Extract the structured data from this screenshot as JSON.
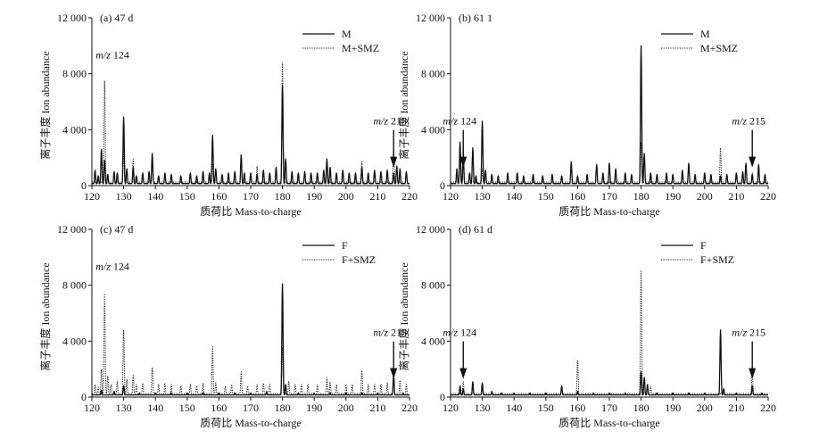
{
  "chart_data": [
    {
      "type": "line",
      "panel_label": "(a) 47 d",
      "xlabel": "质荷比 Mass-to-charge",
      "ylabel": "离子丰度 Ion abundance",
      "xlim": [
        120,
        220
      ],
      "ylim": [
        0,
        12000
      ],
      "xticks": [
        120,
        130,
        140,
        150,
        160,
        170,
        180,
        190,
        200,
        210,
        220
      ],
      "yticks": [
        0,
        4000,
        8000,
        12000
      ],
      "ytick_labels": [
        "0",
        "4 000",
        "8 000",
        "12 000"
      ],
      "legend_position": "top-right",
      "series": [
        {
          "name": "M",
          "style": "solid",
          "peaks": [
            [
              121,
              1100
            ],
            [
              122,
              700
            ],
            [
              123,
              2600
            ],
            [
              124,
              1800
            ],
            [
              125,
              800
            ],
            [
              127,
              1000
            ],
            [
              128,
              900
            ],
            [
              130,
              4900
            ],
            [
              131,
              1200
            ],
            [
              133,
              1300
            ],
            [
              134,
              700
            ],
            [
              136,
              900
            ],
            [
              138,
              1000
            ],
            [
              139,
              2300
            ],
            [
              141,
              700
            ],
            [
              143,
              900
            ],
            [
              145,
              800
            ],
            [
              148,
              700
            ],
            [
              151,
              900
            ],
            [
              153,
              700
            ],
            [
              155,
              1000
            ],
            [
              157,
              900
            ],
            [
              158,
              3600
            ],
            [
              159,
              1200
            ],
            [
              161,
              800
            ],
            [
              163,
              900
            ],
            [
              165,
              1000
            ],
            [
              167,
              2200
            ],
            [
              168,
              900
            ],
            [
              170,
              900
            ],
            [
              172,
              800
            ],
            [
              174,
              1100
            ],
            [
              176,
              900
            ],
            [
              178,
              1300
            ],
            [
              180,
              7200
            ],
            [
              181,
              1900
            ],
            [
              183,
              1000
            ],
            [
              185,
              900
            ],
            [
              187,
              1000
            ],
            [
              189,
              900
            ],
            [
              191,
              900
            ],
            [
              193,
              1100
            ],
            [
              194,
              1900
            ],
            [
              195,
              1300
            ],
            [
              197,
              900
            ],
            [
              199,
              1100
            ],
            [
              201,
              900
            ],
            [
              203,
              900
            ],
            [
              205,
              1300
            ],
            [
              207,
              900
            ],
            [
              209,
              1100
            ],
            [
              211,
              1000
            ],
            [
              213,
              1100
            ],
            [
              215,
              900
            ],
            [
              216,
              1400
            ],
            [
              217,
              1200
            ],
            [
              219,
              1000
            ]
          ]
        },
        {
          "name": "M+SMZ",
          "style": "dotted",
          "peaks": [
            [
              124,
              7500
            ],
            [
              130,
              2400
            ],
            [
              133,
              1900
            ],
            [
              139,
              1600
            ],
            [
              158,
              1600
            ],
            [
              172,
              1400
            ],
            [
              180,
              8800
            ],
            [
              194,
              1800
            ],
            [
              205,
              1700
            ],
            [
              215,
              2600
            ]
          ]
        }
      ],
      "annotations": [
        {
          "text": "m/z 124",
          "x": 124,
          "arrow": false
        },
        {
          "text": "m/z 215",
          "x": 215,
          "arrow": true
        }
      ]
    },
    {
      "type": "line",
      "panel_label": "(b) 61 1",
      "xlabel": "质荷比 Mass-to-charge",
      "ylabel": "离子丰度 Ion abundance",
      "xlim": [
        120,
        220
      ],
      "ylim": [
        0,
        12000
      ],
      "xticks": [
        120,
        130,
        140,
        150,
        160,
        170,
        180,
        190,
        200,
        210,
        220
      ],
      "yticks": [
        0,
        4000,
        8000,
        12000
      ],
      "ytick_labels": [
        "0",
        "4 000",
        "8 000",
        "12 000"
      ],
      "legend_position": "top-right",
      "series": [
        {
          "name": "M",
          "style": "solid",
          "peaks": [
            [
              122,
              1200
            ],
            [
              123,
              3100
            ],
            [
              124,
              2000
            ],
            [
              126,
              900
            ],
            [
              127,
              2700
            ],
            [
              128,
              700
            ],
            [
              130,
              4600
            ],
            [
              131,
              1100
            ],
            [
              133,
              800
            ],
            [
              135,
              700
            ],
            [
              138,
              900
            ],
            [
              141,
              900
            ],
            [
              143,
              700
            ],
            [
              146,
              800
            ],
            [
              149,
              700
            ],
            [
              152,
              800
            ],
            [
              155,
              700
            ],
            [
              158,
              1700
            ],
            [
              160,
              700
            ],
            [
              163,
              800
            ],
            [
              166,
              1500
            ],
            [
              168,
              900
            ],
            [
              170,
              1600
            ],
            [
              172,
              1200
            ],
            [
              175,
              900
            ],
            [
              177,
              800
            ],
            [
              180,
              10000
            ],
            [
              181,
              2300
            ],
            [
              183,
              900
            ],
            [
              185,
              800
            ],
            [
              188,
              900
            ],
            [
              190,
              800
            ],
            [
              193,
              1100
            ],
            [
              195,
              1600
            ],
            [
              197,
              800
            ],
            [
              200,
              900
            ],
            [
              202,
              800
            ],
            [
              205,
              700
            ],
            [
              207,
              800
            ],
            [
              210,
              900
            ],
            [
              212,
              1000
            ],
            [
              213,
              1600
            ],
            [
              215,
              800
            ],
            [
              217,
              1500
            ],
            [
              219,
              800
            ]
          ]
        },
        {
          "name": "M+SMZ",
          "style": "dotted",
          "peaks": [
            [
              123,
              1800
            ],
            [
              124,
              2800
            ],
            [
              130,
              1200
            ],
            [
              180,
              3100
            ],
            [
              205,
              2700
            ],
            [
              215,
              900
            ]
          ]
        }
      ],
      "annotations": [
        {
          "text": "m/z 124",
          "x": 124,
          "arrow": true
        },
        {
          "text": "m/z 215",
          "x": 215,
          "arrow": true
        }
      ]
    },
    {
      "type": "line",
      "panel_label": "(c) 47 d",
      "xlabel": "质荷比 Mass-to-charge",
      "ylabel": "离子丰度 Ion abundance",
      "xlim": [
        120,
        220
      ],
      "ylim": [
        0,
        12000
      ],
      "xticks": [
        120,
        130,
        140,
        150,
        160,
        170,
        180,
        190,
        200,
        210,
        220
      ],
      "yticks": [
        0,
        4000,
        8000,
        12000
      ],
      "ytick_labels": [
        "0",
        "4 000",
        "8 000",
        "12 000"
      ],
      "legend_position": "top-right",
      "series": [
        {
          "name": "F",
          "style": "solid",
          "peaks": [
            [
              123,
              500
            ],
            [
              127,
              400
            ],
            [
              130,
              800
            ],
            [
              135,
              300
            ],
            [
              140,
              300
            ],
            [
              145,
              300
            ],
            [
              150,
              300
            ],
            [
              155,
              300
            ],
            [
              160,
              300
            ],
            [
              165,
              300
            ],
            [
              170,
              300
            ],
            [
              175,
              400
            ],
            [
              180,
              8100
            ],
            [
              181,
              900
            ],
            [
              185,
              300
            ],
            [
              190,
              300
            ],
            [
              195,
              300
            ],
            [
              200,
              300
            ],
            [
              205,
              300
            ],
            [
              210,
              300
            ],
            [
              215,
              1500
            ],
            [
              218,
              300
            ]
          ]
        },
        {
          "name": "F+SMZ",
          "style": "dotted",
          "peaks": [
            [
              121,
              900
            ],
            [
              122,
              700
            ],
            [
              123,
              2000
            ],
            [
              124,
              7400
            ],
            [
              125,
              1500
            ],
            [
              126,
              900
            ],
            [
              128,
              1100
            ],
            [
              130,
              4800
            ],
            [
              131,
              1300
            ],
            [
              133,
              1600
            ],
            [
              134,
              900
            ],
            [
              136,
              1000
            ],
            [
              139,
              2100
            ],
            [
              141,
              900
            ],
            [
              143,
              1000
            ],
            [
              145,
              900
            ],
            [
              148,
              800
            ],
            [
              151,
              900
            ],
            [
              153,
              800
            ],
            [
              155,
              1000
            ],
            [
              158,
              3600
            ],
            [
              159,
              1000
            ],
            [
              162,
              800
            ],
            [
              164,
              900
            ],
            [
              167,
              1800
            ],
            [
              169,
              800
            ],
            [
              172,
              900
            ],
            [
              174,
              1000
            ],
            [
              176,
              900
            ],
            [
              180,
              3500
            ],
            [
              182,
              1100
            ],
            [
              184,
              900
            ],
            [
              186,
              900
            ],
            [
              188,
              900
            ],
            [
              191,
              900
            ],
            [
              194,
              1400
            ],
            [
              195,
              1100
            ],
            [
              197,
              900
            ],
            [
              200,
              900
            ],
            [
              202,
              900
            ],
            [
              205,
              1900
            ],
            [
              207,
              900
            ],
            [
              209,
              900
            ],
            [
              211,
              900
            ],
            [
              213,
              1000
            ],
            [
              215,
              1700
            ],
            [
              217,
              1200
            ],
            [
              219,
              900
            ]
          ]
        }
      ],
      "annotations": [
        {
          "text": "m/z 124",
          "x": 124,
          "arrow": false
        },
        {
          "text": "m/z 215",
          "x": 215,
          "arrow": true
        }
      ]
    },
    {
      "type": "line",
      "panel_label": "(d) 61 d",
      "xlabel": "质荷比 Mass-to-charge",
      "ylabel": "离子丰度 Ion abundance",
      "xlim": [
        120,
        220
      ],
      "ylim": [
        0,
        12000
      ],
      "xticks": [
        120,
        130,
        140,
        150,
        160,
        170,
        180,
        190,
        200,
        210,
        220
      ],
      "yticks": [
        0,
        4000,
        8000,
        12000
      ],
      "ytick_labels": [
        "0",
        "4 000",
        "8 000",
        "12 000"
      ],
      "legend_position": "top-right",
      "series": [
        {
          "name": "F",
          "style": "solid",
          "peaks": [
            [
              123,
              800
            ],
            [
              124,
              600
            ],
            [
              127,
              1100
            ],
            [
              130,
              1000
            ],
            [
              133,
              400
            ],
            [
              136,
              300
            ],
            [
              140,
              300
            ],
            [
              145,
              300
            ],
            [
              150,
              300
            ],
            [
              155,
              800
            ],
            [
              160,
              400
            ],
            [
              165,
              300
            ],
            [
              170,
              300
            ],
            [
              175,
              300
            ],
            [
              180,
              1800
            ],
            [
              181,
              1400
            ],
            [
              182,
              900
            ],
            [
              185,
              300
            ],
            [
              190,
              300
            ],
            [
              195,
              300
            ],
            [
              200,
              300
            ],
            [
              205,
              4800
            ],
            [
              206,
              600
            ],
            [
              210,
              300
            ],
            [
              215,
              800
            ],
            [
              218,
              300
            ]
          ]
        },
        {
          "name": "F+SMZ",
          "style": "dotted",
          "peaks": [
            [
              124,
              1100
            ],
            [
              127,
              700
            ],
            [
              130,
              700
            ],
            [
              160,
              2600
            ],
            [
              180,
              9000
            ],
            [
              183,
              800
            ],
            [
              215,
              1900
            ]
          ]
        }
      ],
      "annotations": [
        {
          "text": "m/z 124",
          "x": 124,
          "arrow": true
        },
        {
          "text": "m/z 215",
          "x": 215,
          "arrow": true
        }
      ]
    }
  ]
}
